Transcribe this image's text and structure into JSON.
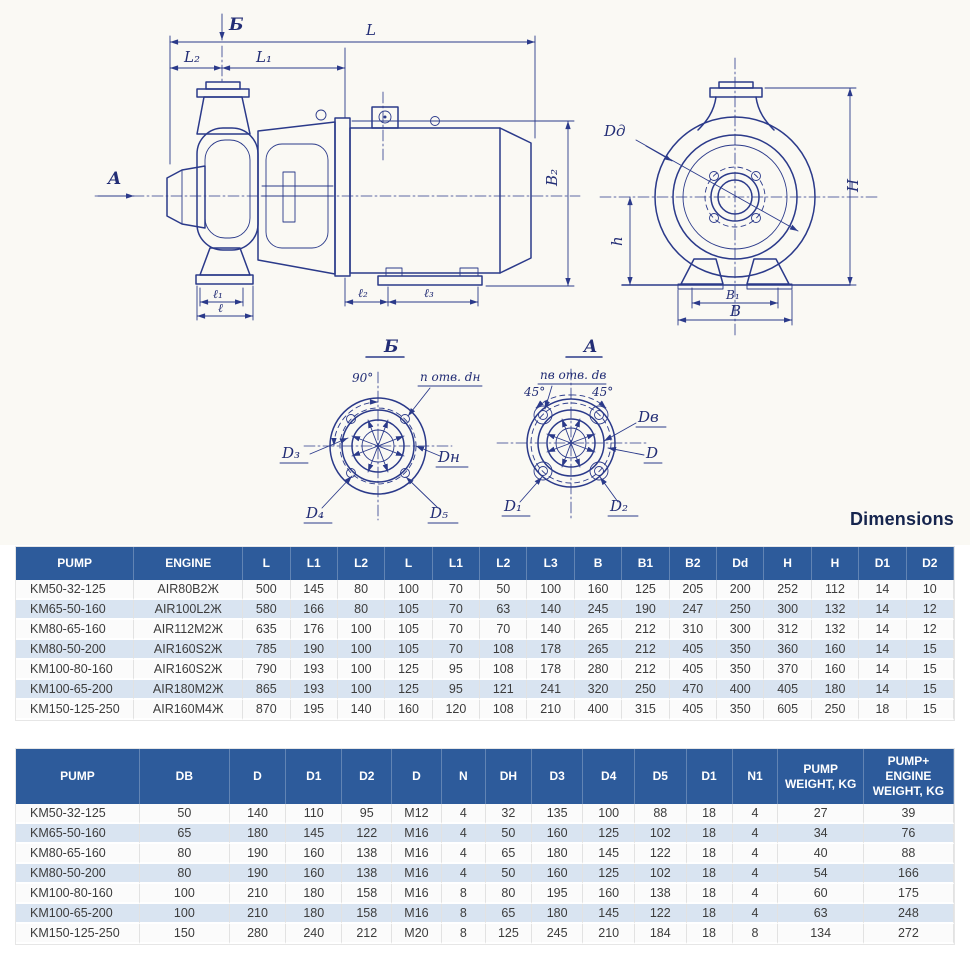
{
  "heading": "Dimensions",
  "colors": {
    "table_header_bg": "#2d5b9b",
    "table_row_alt": "#d9e4f1",
    "drawing_line": "#2b3a8a",
    "heading_text": "#16254e"
  },
  "drawing": {
    "side": {
      "b_marker": "Б",
      "l": "L",
      "l2": "L₂",
      "l1": "L₁",
      "a_marker": "A",
      "b2": "B₂",
      "el1": "ℓ₁",
      "el": "ℓ",
      "el2": "ℓ₂",
      "el3": "ℓ₃"
    },
    "end": {
      "dd": "Dд",
      "h": "H",
      "h_small": "h",
      "b1": "B₁",
      "b": "B"
    },
    "flange_b": {
      "title": "Б",
      "angle": "90°",
      "holes": "n отв. dн",
      "d3": "D₃",
      "dn": "Dн",
      "d4": "D₄",
      "d5": "D₅"
    },
    "flange_a": {
      "title": "A",
      "holes": "nв отв. dв",
      "angle_left": "45°",
      "angle_right": "45°",
      "dv": "Dв",
      "d": "D",
      "d1": "D₁",
      "d2": "D₂"
    }
  },
  "table1": {
    "headers": [
      "PUMP",
      "ENGINE",
      "L",
      "L1",
      "L2",
      "L",
      "L1",
      "L2",
      "L3",
      "B",
      "B1",
      "B2",
      "Dd",
      "H",
      "H",
      "D1",
      "D2"
    ],
    "rows": [
      [
        "KM50-32-125",
        "AIR80B2Ж",
        "500",
        "145",
        "80",
        "100",
        "70",
        "50",
        "100",
        "160",
        "125",
        "205",
        "200",
        "252",
        "112",
        "14",
        "10"
      ],
      [
        "KM65-50-160",
        "AIR100L2Ж",
        "580",
        "166",
        "80",
        "105",
        "70",
        "63",
        "140",
        "245",
        "190",
        "247",
        "250",
        "300",
        "132",
        "14",
        "12"
      ],
      [
        "KM80-65-160",
        "AIR112M2Ж",
        "635",
        "176",
        "100",
        "105",
        "70",
        "70",
        "140",
        "265",
        "212",
        "310",
        "300",
        "312",
        "132",
        "14",
        "12"
      ],
      [
        "KM80-50-200",
        "AIR160S2Ж",
        "785",
        "190",
        "100",
        "105",
        "70",
        "108",
        "178",
        "265",
        "212",
        "405",
        "350",
        "360",
        "160",
        "14",
        "15"
      ],
      [
        "KM100-80-160",
        "AIR160S2Ж",
        "790",
        "193",
        "100",
        "125",
        "95",
        "108",
        "178",
        "280",
        "212",
        "405",
        "350",
        "370",
        "160",
        "14",
        "15"
      ],
      [
        "KM100-65-200",
        "AIR180M2Ж",
        "865",
        "193",
        "100",
        "125",
        "95",
        "121",
        "241",
        "320",
        "250",
        "470",
        "400",
        "405",
        "180",
        "14",
        "15"
      ],
      [
        "KM150-125-250",
        "AIR160M4Ж",
        "870",
        "195",
        "140",
        "160",
        "120",
        "108",
        "210",
        "400",
        "315",
        "405",
        "350",
        "605",
        "250",
        "18",
        "15"
      ]
    ]
  },
  "table2": {
    "headers": [
      "PUMP",
      "DB",
      "D",
      "D1",
      "D2",
      "D",
      "N",
      "DH",
      "D3",
      "D4",
      "D5",
      "D1",
      "N1",
      "PUMP WEIGHT, KG",
      "PUMP+ ENGINE WEIGHT, KG"
    ],
    "rows": [
      [
        "KM50-32-125",
        "50",
        "140",
        "110",
        "95",
        "M12",
        "4",
        "32",
        "135",
        "100",
        "88",
        "18",
        "4",
        "27",
        "39"
      ],
      [
        "KM65-50-160",
        "65",
        "180",
        "145",
        "122",
        "M16",
        "4",
        "50",
        "160",
        "125",
        "102",
        "18",
        "4",
        "34",
        "76"
      ],
      [
        "KM80-65-160",
        "80",
        "190",
        "160",
        "138",
        "M16",
        "4",
        "65",
        "180",
        "145",
        "122",
        "18",
        "4",
        "40",
        "88"
      ],
      [
        "KM80-50-200",
        "80",
        "190",
        "160",
        "138",
        "M16",
        "4",
        "50",
        "160",
        "125",
        "102",
        "18",
        "4",
        "54",
        "166"
      ],
      [
        "KM100-80-160",
        "100",
        "210",
        "180",
        "158",
        "M16",
        "8",
        "80",
        "195",
        "160",
        "138",
        "18",
        "4",
        "60",
        "175"
      ],
      [
        "KM100-65-200",
        "100",
        "210",
        "180",
        "158",
        "M16",
        "8",
        "65",
        "180",
        "145",
        "122",
        "18",
        "4",
        "63",
        "248"
      ],
      [
        "KM150-125-250",
        "150",
        "280",
        "240",
        "212",
        "M20",
        "8",
        "125",
        "245",
        "210",
        "184",
        "18",
        "8",
        "134",
        "272"
      ]
    ]
  }
}
